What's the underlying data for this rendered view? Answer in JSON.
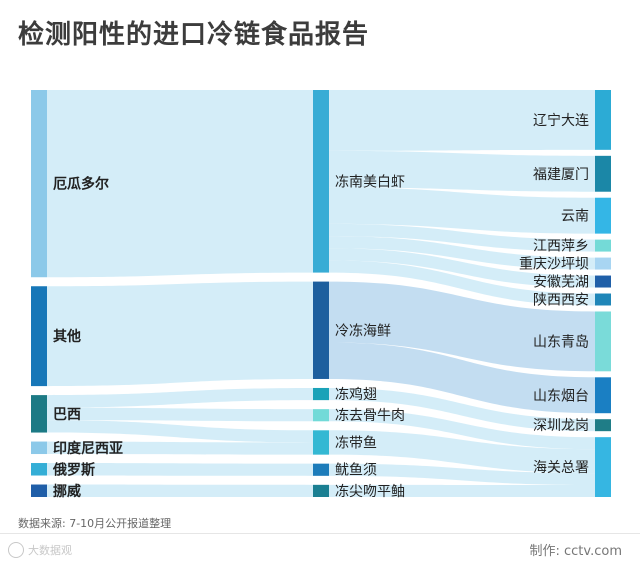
{
  "title": "检测阳性的进口冷链食品报告",
  "source": "数据来源: 7-10月公开报道整理",
  "credit": "制作: cctv.com",
  "watermark": "大数据观",
  "chart_data": {
    "type": "sankey",
    "columns": [
      [
        {
          "id": "ecuador",
          "label": "厄瓜多尔",
          "value": 150,
          "color": "#8cc9e9"
        },
        {
          "id": "other",
          "label": "其他",
          "value": 80,
          "color": "#1777b8"
        },
        {
          "id": "brazil",
          "label": "巴西",
          "value": 30,
          "color": "#1c7a85"
        },
        {
          "id": "indonesia",
          "label": "印度尼西亚",
          "value": 10,
          "color": "#8cc9e9"
        },
        {
          "id": "russia",
          "label": "俄罗斯",
          "value": 10,
          "color": "#34aed6"
        },
        {
          "id": "norway",
          "label": "挪威",
          "value": 10,
          "color": "#1f5ea8"
        }
      ],
      [
        {
          "id": "shrimp",
          "label": "冻南美白虾",
          "value": 150,
          "color": "#38acd5"
        },
        {
          "id": "seafood",
          "label": "冷冻海鲜",
          "value": 80,
          "color": "#1d5f9e"
        },
        {
          "id": "chicken",
          "label": "冻鸡翅",
          "value": 10,
          "color": "#1aa2b8"
        },
        {
          "id": "beef",
          "label": "冻去骨牛肉",
          "value": 10,
          "color": "#72dad8"
        },
        {
          "id": "hairtail",
          "label": "冻带鱼",
          "value": 20,
          "color": "#34b8d3"
        },
        {
          "id": "squid",
          "label": "鱿鱼须",
          "value": 10,
          "color": "#1d7cba"
        },
        {
          "id": "pomfret",
          "label": "冻尖吻平鲉",
          "value": 10,
          "color": "#1a7f92"
        }
      ],
      [
        {
          "id": "liaoning",
          "label": "辽宁大连",
          "value": 50,
          "color": "#2cabd5"
        },
        {
          "id": "fujian",
          "label": "福建厦门",
          "value": 30,
          "color": "#1b87a7"
        },
        {
          "id": "yunnan",
          "label": "云南",
          "value": 30,
          "color": "#34b6e6"
        },
        {
          "id": "jiangxi",
          "label": "江西萍乡",
          "value": 10,
          "color": "#74dad7"
        },
        {
          "id": "chongqing",
          "label": "重庆沙坪坝",
          "value": 10,
          "color": "#a8d5f2"
        },
        {
          "id": "anhui",
          "label": "安徽芜湖",
          "value": 10,
          "color": "#1f5fa8"
        },
        {
          "id": "shaanxi",
          "label": "陕西西安",
          "value": 10,
          "color": "#1f86b8"
        },
        {
          "id": "qingdao",
          "label": "山东青岛",
          "value": 50,
          "color": "#7adbd9"
        },
        {
          "id": "yantai",
          "label": "山东烟台",
          "value": 30,
          "color": "#1a7fc3"
        },
        {
          "id": "shenzhen",
          "label": "深圳龙岗",
          "value": 10,
          "color": "#1f7d87"
        },
        {
          "id": "customs",
          "label": "海关总署",
          "value": 50,
          "color": "#36b6e2"
        }
      ]
    ],
    "links": [
      {
        "source": "ecuador",
        "target": "shrimp",
        "value": 150
      },
      {
        "source": "other",
        "target": "seafood",
        "value": 80
      },
      {
        "source": "brazil",
        "target": "chicken",
        "value": 10
      },
      {
        "source": "brazil",
        "target": "beef",
        "value": 10
      },
      {
        "source": "brazil",
        "target": "hairtail",
        "value": 10
      },
      {
        "source": "indonesia",
        "target": "hairtail",
        "value": 10
      },
      {
        "source": "russia",
        "target": "squid",
        "value": 10
      },
      {
        "source": "norway",
        "target": "pomfret",
        "value": 10
      },
      {
        "source": "shrimp",
        "target": "liaoning",
        "value": 50
      },
      {
        "source": "shrimp",
        "target": "fujian",
        "value": 30
      },
      {
        "source": "shrimp",
        "target": "yunnan",
        "value": 30
      },
      {
        "source": "shrimp",
        "target": "jiangxi",
        "value": 10
      },
      {
        "source": "shrimp",
        "target": "chongqing",
        "value": 10
      },
      {
        "source": "shrimp",
        "target": "anhui",
        "value": 10
      },
      {
        "source": "shrimp",
        "target": "shaanxi",
        "value": 10
      },
      {
        "source": "seafood",
        "target": "qingdao",
        "value": 50
      },
      {
        "source": "seafood",
        "target": "yantai",
        "value": 30
      },
      {
        "source": "chicken",
        "target": "shenzhen",
        "value": 10
      },
      {
        "source": "beef",
        "target": "customs",
        "value": 10
      },
      {
        "source": "hairtail",
        "target": "customs",
        "value": 20
      },
      {
        "source": "squid",
        "target": "customs",
        "value": 10
      },
      {
        "source": "pomfret",
        "target": "customs",
        "value": 10
      }
    ]
  }
}
